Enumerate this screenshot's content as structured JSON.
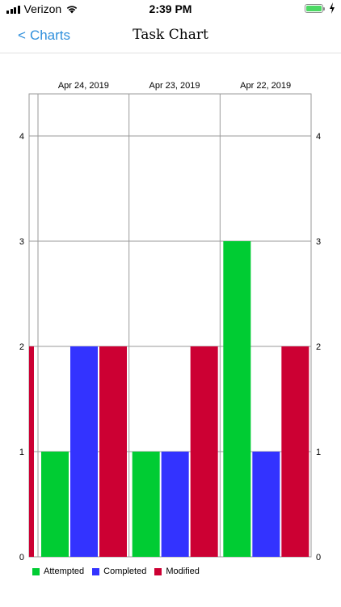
{
  "status_bar": {
    "carrier": "Verizon",
    "time": "2:39 PM"
  },
  "nav": {
    "back_label": "Charts",
    "title": "Task Chart"
  },
  "chart_data": {
    "type": "bar",
    "categories": [
      "Apr 24, 2019",
      "Apr 23, 2019",
      "Apr 22, 2019"
    ],
    "series": [
      {
        "name": "Attempted",
        "color": "#00cc33",
        "values": [
          1,
          1,
          3
        ]
      },
      {
        "name": "Completed",
        "color": "#3333ff",
        "values": [
          2,
          1,
          1
        ]
      },
      {
        "name": "Modified",
        "color": "#cc0033",
        "values": [
          2,
          2,
          2
        ]
      }
    ],
    "partial_bar_left": {
      "series": "Modified",
      "value": 2
    },
    "ylim": [
      0,
      4.4
    ],
    "yticks": [
      0,
      1,
      2,
      3,
      4
    ],
    "grid": true,
    "legend_position": "bottom-left",
    "xaxis_position": "top",
    "yaxis": "both"
  }
}
